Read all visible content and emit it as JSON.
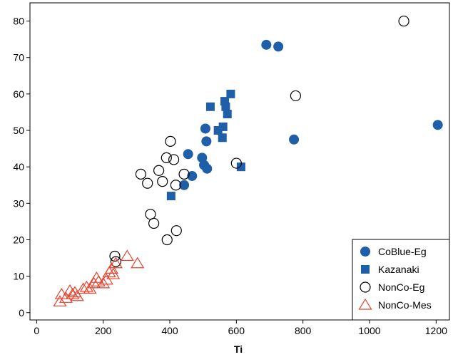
{
  "chart_data": {
    "type": "scatter",
    "title": "",
    "xlabel": "Ti",
    "ylabel": "",
    "xlim": [
      -20,
      1240
    ],
    "ylim": [
      -2,
      85
    ],
    "x_ticks": [
      0,
      200,
      400,
      600,
      800,
      1000,
      1200
    ],
    "y_ticks": [
      0,
      10,
      20,
      30,
      40,
      50,
      60,
      70,
      80
    ],
    "x_tick_labels": [
      "0",
      "200",
      "400",
      "600",
      "800",
      "1000",
      "1200"
    ],
    "y_tick_labels": [
      "0",
      "10",
      "20",
      "30",
      "40",
      "50",
      "60",
      "70",
      "80"
    ],
    "grid": false,
    "legend_position": "bottom-right",
    "series": [
      {
        "name": "CoBlue-Eg",
        "marker": "circle-filled",
        "color": "#1f5ea8",
        "points": [
          [
            455,
            43.5
          ],
          [
            467,
            37.5
          ],
          [
            443,
            35
          ],
          [
            497,
            42.5
          ],
          [
            503,
            40.5
          ],
          [
            510,
            47
          ],
          [
            512,
            39.5
          ],
          [
            507,
            50.5
          ],
          [
            690,
            73.5
          ],
          [
            726,
            73
          ],
          [
            773,
            47.5
          ],
          [
            1205,
            51.5
          ]
        ]
      },
      {
        "name": "Kazanaki",
        "marker": "square-filled",
        "color": "#1f5ea8",
        "points": [
          [
            404,
            32
          ],
          [
            522,
            56.5
          ],
          [
            545,
            50
          ],
          [
            560,
            51
          ],
          [
            565,
            58
          ],
          [
            568,
            56.5
          ],
          [
            573,
            54.5
          ],
          [
            583,
            60
          ],
          [
            558,
            48
          ],
          [
            614,
            40
          ]
        ]
      },
      {
        "name": "NonCo-Eg",
        "marker": "circle-open",
        "color": "#000000",
        "points": [
          [
            235,
            15.5
          ],
          [
            238,
            14
          ],
          [
            313,
            38
          ],
          [
            333,
            35.5
          ],
          [
            342,
            27
          ],
          [
            352,
            24.5
          ],
          [
            367,
            39
          ],
          [
            378,
            36
          ],
          [
            390,
            42.5
          ],
          [
            392,
            20
          ],
          [
            402,
            47
          ],
          [
            412,
            42
          ],
          [
            418,
            35
          ],
          [
            420,
            22.5
          ],
          [
            443,
            38
          ],
          [
            600,
            41
          ],
          [
            778,
            59.5
          ],
          [
            1103,
            80
          ]
        ]
      },
      {
        "name": "NonCo-Mes",
        "marker": "triangle-open",
        "color": "#e8412c",
        "points": [
          [
            70,
            3
          ],
          [
            75,
            5
          ],
          [
            88,
            4
          ],
          [
            100,
            6
          ],
          [
            108,
            5
          ],
          [
            115,
            5.5
          ],
          [
            122,
            4.5
          ],
          [
            140,
            6.5
          ],
          [
            150,
            7
          ],
          [
            160,
            6.5
          ],
          [
            172,
            8
          ],
          [
            180,
            9.5
          ],
          [
            186,
            8.5
          ],
          [
            200,
            8
          ],
          [
            210,
            9
          ],
          [
            218,
            11
          ],
          [
            225,
            12
          ],
          [
            230,
            10.5
          ],
          [
            238,
            13.5
          ],
          [
            272,
            15.5
          ],
          [
            303,
            13.5
          ]
        ]
      }
    ]
  }
}
